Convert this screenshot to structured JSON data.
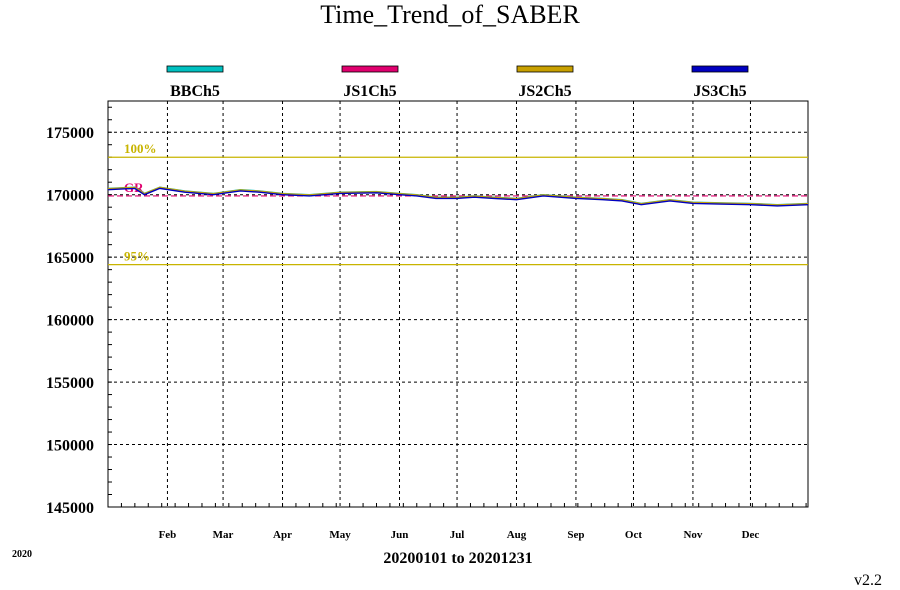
{
  "chart_data": {
    "type": "line",
    "title": "Time_Trend_of_SABER",
    "x_range_label": "20200101 to 20201231",
    "year_label": "2020",
    "version": "v2.2",
    "x_domain": [
      "2020-01-01",
      "2020-12-31"
    ],
    "x_ticks": [
      {
        "label": "Feb",
        "date": "2020-02-01"
      },
      {
        "label": "Mar",
        "date": "2020-03-01"
      },
      {
        "label": "Apr",
        "date": "2020-04-01"
      },
      {
        "label": "May",
        "date": "2020-05-01"
      },
      {
        "label": "Jun",
        "date": "2020-06-01"
      },
      {
        "label": "Jul",
        "date": "2020-07-01"
      },
      {
        "label": "Aug",
        "date": "2020-08-01"
      },
      {
        "label": "Sep",
        "date": "2020-09-01"
      },
      {
        "label": "Oct",
        "date": "2020-10-01"
      },
      {
        "label": "Nov",
        "date": "2020-11-01"
      },
      {
        "label": "Dec",
        "date": "2020-12-01"
      }
    ],
    "ylim": [
      145000,
      177500
    ],
    "y_ticks": [
      145000,
      150000,
      155000,
      160000,
      165000,
      170000,
      175000
    ],
    "grid": true,
    "legend_position": "top",
    "reference_lines": [
      {
        "label": "100%",
        "value": 173000,
        "color": "#c8b400"
      },
      {
        "label": "GR",
        "value": 169900,
        "color": "#e0006e"
      },
      {
        "label": "95%",
        "value": 164400,
        "color": "#c8b400"
      }
    ],
    "series": [
      {
        "name": "BBCh5",
        "color": "#00c0c0",
        "x": [
          "2020-01-01",
          "2020-01-15",
          "2020-01-20",
          "2020-01-28",
          "2020-02-10",
          "2020-02-25",
          "2020-03-10",
          "2020-03-20",
          "2020-04-01",
          "2020-04-15",
          "2020-05-01",
          "2020-05-20",
          "2020-06-01",
          "2020-06-10",
          "2020-06-20",
          "2020-07-01",
          "2020-07-10",
          "2020-07-20",
          "2020-08-01",
          "2020-08-15",
          "2020-09-01",
          "2020-09-15",
          "2020-09-25",
          "2020-10-05",
          "2020-10-20",
          "2020-11-01",
          "2020-11-15",
          "2020-12-01",
          "2020-12-15",
          "2020-12-31"
        ],
        "values": [
          170500,
          170600,
          170100,
          170600,
          170300,
          170100,
          170400,
          170300,
          170100,
          170000,
          170200,
          170250,
          170100,
          170000,
          169800,
          169800,
          169900,
          169800,
          169700,
          170000,
          169800,
          169700,
          169600,
          169300,
          169600,
          169400,
          169350,
          169300,
          169200,
          169300
        ]
      },
      {
        "name": "JS1Ch5",
        "color": "#e0006e",
        "x": [
          "2020-01-01",
          "2020-01-15",
          "2020-01-20",
          "2020-01-28",
          "2020-02-10",
          "2020-02-25",
          "2020-03-10",
          "2020-03-20",
          "2020-04-01",
          "2020-04-15",
          "2020-05-01",
          "2020-05-20",
          "2020-06-01",
          "2020-06-10",
          "2020-06-20",
          "2020-07-01",
          "2020-07-10",
          "2020-07-20",
          "2020-08-01",
          "2020-08-15",
          "2020-09-01",
          "2020-09-15",
          "2020-09-25",
          "2020-10-05",
          "2020-10-20",
          "2020-11-01",
          "2020-11-15",
          "2020-12-01",
          "2020-12-15",
          "2020-12-31"
        ],
        "values": [
          170450,
          170550,
          170050,
          170550,
          170250,
          170050,
          170350,
          170250,
          170050,
          169950,
          170150,
          170200,
          170050,
          169950,
          169750,
          169750,
          169850,
          169750,
          169650,
          169950,
          169750,
          169650,
          169550,
          169250,
          169550,
          169350,
          169300,
          169250,
          169150,
          169250
        ]
      },
      {
        "name": "JS2Ch5",
        "color": "#c8a000",
        "x": [
          "2020-01-01",
          "2020-01-15",
          "2020-01-20",
          "2020-01-28",
          "2020-02-10",
          "2020-02-25",
          "2020-03-10",
          "2020-03-20",
          "2020-04-01",
          "2020-04-15",
          "2020-05-01",
          "2020-05-20",
          "2020-06-01",
          "2020-06-10",
          "2020-06-20",
          "2020-07-01",
          "2020-07-10",
          "2020-07-20",
          "2020-08-01",
          "2020-08-15",
          "2020-09-01",
          "2020-09-15",
          "2020-09-25",
          "2020-10-05",
          "2020-10-20",
          "2020-11-01",
          "2020-11-15",
          "2020-12-01",
          "2020-12-15",
          "2020-12-31"
        ],
        "values": [
          170480,
          170580,
          170080,
          170580,
          170280,
          170080,
          170380,
          170280,
          170080,
          169980,
          170180,
          170230,
          170080,
          169980,
          169780,
          169780,
          169880,
          169780,
          169680,
          169980,
          169780,
          169680,
          169580,
          169280,
          169580,
          169380,
          169330,
          169280,
          169180,
          169280
        ]
      },
      {
        "name": "JS3Ch5",
        "color": "#0000c0",
        "x": [
          "2020-01-01",
          "2020-01-15",
          "2020-01-20",
          "2020-01-28",
          "2020-02-10",
          "2020-02-25",
          "2020-03-10",
          "2020-03-20",
          "2020-04-01",
          "2020-04-15",
          "2020-05-01",
          "2020-05-20",
          "2020-06-01",
          "2020-06-10",
          "2020-06-20",
          "2020-07-01",
          "2020-07-10",
          "2020-07-20",
          "2020-08-01",
          "2020-08-15",
          "2020-09-01",
          "2020-09-15",
          "2020-09-25",
          "2020-10-05",
          "2020-10-20",
          "2020-11-01",
          "2020-11-15",
          "2020-12-01",
          "2020-12-15",
          "2020-12-31"
        ],
        "values": [
          170400,
          170500,
          170000,
          170500,
          170200,
          170000,
          170300,
          170200,
          170000,
          169900,
          170100,
          170150,
          170000,
          169900,
          169700,
          169700,
          169800,
          169700,
          169600,
          169900,
          169700,
          169600,
          169500,
          169200,
          169500,
          169300,
          169250,
          169200,
          169100,
          169200
        ]
      }
    ]
  }
}
